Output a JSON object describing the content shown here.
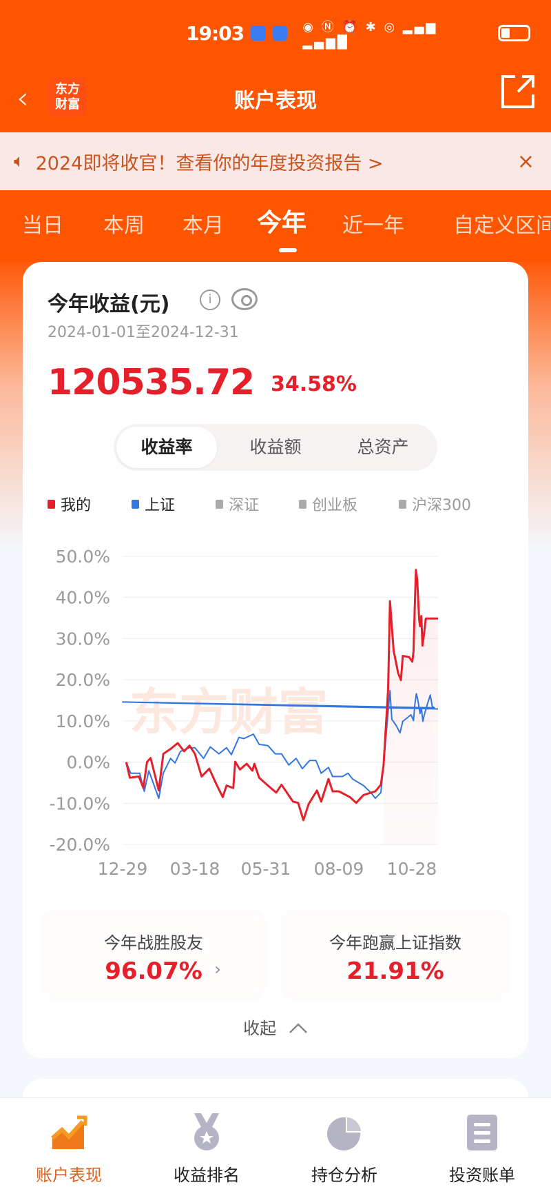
{
  "status_bar": {
    "time": "19:03",
    "icons": [
      "alarm-app-icon",
      "alarm-app-icon",
      "eye-icon",
      "nfc-icon",
      "alarm-icon",
      "bluetooth-icon",
      "hotspot-icon",
      "4g-signal-icon",
      "5g-signal-icon",
      "battery-icon"
    ]
  },
  "header": {
    "title": "账户表现",
    "logo_text": "东方财富",
    "back_icon": "chevron-left-icon",
    "share_icon": "share-icon"
  },
  "banner": {
    "text": "2024即将收官！查看你的年度投资报告 >",
    "icon": "speaker-icon",
    "close": "×"
  },
  "tabs": [
    {
      "label": "当日"
    },
    {
      "label": "本周"
    },
    {
      "label": "本月"
    },
    {
      "label": "今年",
      "active": true
    },
    {
      "label": "近一年"
    },
    {
      "label": "自定义区间"
    }
  ],
  "card": {
    "title": "今年收益(元)",
    "info_icon": "i",
    "date_range": "2024-01-01至2024-12-31",
    "profit": "120535.72",
    "profit_rate": "34.58%",
    "toggle": [
      {
        "label": "收益率",
        "active": true
      },
      {
        "label": "收益额"
      },
      {
        "label": "总资产"
      }
    ],
    "legend": [
      {
        "label": "我的",
        "color": "#e5202a",
        "active": true
      },
      {
        "label": "上证",
        "color": "#3277e0",
        "active": true
      },
      {
        "label": "深证",
        "color": "#aaaaaa"
      },
      {
        "label": "创业板",
        "color": "#aaaaaa"
      },
      {
        "label": "沪深300",
        "color": "#aaaaaa"
      }
    ],
    "watermark": "东方财富",
    "stats": [
      {
        "label": "今年战胜股友",
        "value": "96.07%",
        "chevron": "›"
      },
      {
        "label": "今年跑赢上证指数",
        "value": "21.91%"
      }
    ],
    "collapse_label": "收起",
    "collapse_icon": "^"
  },
  "chart_data": {
    "type": "line",
    "ylim": [
      -20,
      50
    ],
    "y_ticks": [
      "50.0%",
      "40.0%",
      "30.0%",
      "20.0%",
      "10.0%",
      "0.0%",
      "-10.0%",
      "-20.0%"
    ],
    "x_ticks": [
      "12-29",
      "03-18",
      "05-31",
      "08-09",
      "10-28"
    ],
    "grid": true,
    "legend_position": "top",
    "series": [
      {
        "name": "我的",
        "color": "#e5202a",
        "fill": true,
        "points": [
          [
            "01-02",
            0
          ],
          [
            "01-06",
            -3.8
          ],
          [
            "01-16",
            -3.5
          ],
          [
            "01-21",
            -6.3
          ],
          [
            "01-25",
            0
          ],
          [
            "01-29",
            1
          ],
          [
            "02-07",
            -6.9
          ],
          [
            "02-12",
            2
          ],
          [
            "02-20",
            3.2
          ],
          [
            "02-28",
            4.6
          ],
          [
            "03-06",
            2.6
          ],
          [
            "03-12",
            4
          ],
          [
            "03-18",
            2
          ],
          [
            "03-25",
            -3.5
          ],
          [
            "04-02",
            -1.6
          ],
          [
            "04-09",
            -5.2
          ],
          [
            "04-16",
            -8.5
          ],
          [
            "04-20",
            -5.7
          ],
          [
            "04-27",
            -6.3
          ],
          [
            "04-29",
            0.1
          ],
          [
            "05-04",
            -1.8
          ],
          [
            "05-11",
            -0.4
          ],
          [
            "05-17",
            -2.1
          ],
          [
            "05-19",
            -0.4
          ],
          [
            "05-24",
            -3.8
          ],
          [
            "06-02",
            -5.7
          ],
          [
            "06-10",
            -7.4
          ],
          [
            "06-15",
            -5.5
          ],
          [
            "06-26",
            -9.6
          ],
          [
            "07-01",
            -9.9
          ],
          [
            "07-06",
            -14.1
          ],
          [
            "07-11",
            -10.2
          ],
          [
            "07-19",
            -6.9
          ],
          [
            "07-23",
            -9.6
          ],
          [
            "07-30",
            -4.1
          ],
          [
            "08-03",
            -7.1
          ],
          [
            "08-09",
            -7.1
          ],
          [
            "08-21",
            -8.5
          ],
          [
            "08-28",
            -9.9
          ],
          [
            "09-05",
            -8
          ],
          [
            "09-18",
            -7.1
          ],
          [
            "09-24",
            -5.5
          ],
          [
            "09-27",
            -0.7
          ],
          [
            "10-02",
            17.7
          ],
          [
            "10-04",
            39.1
          ],
          [
            "10-08",
            27.1
          ],
          [
            "10-13",
            21.6
          ],
          [
            "10-16",
            19.9
          ],
          [
            "10-18",
            25.8
          ],
          [
            "10-25",
            25.5
          ],
          [
            "10-29",
            24.4
          ],
          [
            "11-01",
            26.9
          ],
          [
            "11-04",
            37.7
          ],
          [
            "11-07",
            46.7
          ],
          [
            "11-10",
            44.4
          ],
          [
            "11-15",
            34.4
          ],
          [
            "11-17",
            33
          ],
          [
            "11-20",
            35.5
          ],
          [
            "11-23",
            28.3
          ],
          [
            "11-26",
            30.5
          ],
          [
            "12-01",
            34.9
          ],
          [
            "12-31",
            34.9
          ]
        ]
      },
      {
        "name": "上证",
        "color": "#3277e0",
        "points": [
          [
            "01-02",
            0
          ],
          [
            "01-07",
            -2.7
          ],
          [
            "01-17",
            -2.7
          ],
          [
            "01-22",
            -7.1
          ],
          [
            "01-27",
            -2.1
          ],
          [
            "02-07",
            -8.8
          ],
          [
            "02-12",
            -2.7
          ],
          [
            "02-20",
            0.9
          ],
          [
            "02-25",
            -0.2
          ],
          [
            "03-02",
            2.6
          ],
          [
            "03-12",
            3.5
          ],
          [
            "03-18",
            3.5
          ],
          [
            "03-27",
            0.9
          ],
          [
            "04-03",
            3.7
          ],
          [
            "04-12",
            2
          ],
          [
            "04-20",
            3.5
          ],
          [
            "04-25",
            1.8
          ],
          [
            "05-03",
            6
          ],
          [
            "05-08",
            5.7
          ],
          [
            "05-18",
            6.8
          ],
          [
            "05-24",
            4.3
          ],
          [
            "06-02",
            4
          ],
          [
            "06-09",
            2
          ],
          [
            "06-15",
            2
          ],
          [
            "06-22",
            -0.7
          ],
          [
            "06-29",
            0.9
          ],
          [
            "07-05",
            -1.6
          ],
          [
            "07-12",
            0.4
          ],
          [
            "07-18",
            0.4
          ],
          [
            "07-23",
            -2.7
          ],
          [
            "07-30",
            -1.3
          ],
          [
            "08-03",
            -3.5
          ],
          [
            "08-13",
            -3.5
          ],
          [
            "08-19",
            -2.7
          ],
          [
            "08-24",
            -4.1
          ],
          [
            "09-05",
            -5.7
          ],
          [
            "09-13",
            -7.4
          ],
          [
            "09-18",
            -8.8
          ],
          [
            "09-24",
            -7.4
          ],
          [
            "09-27",
            -0.7
          ],
          [
            "10-04",
            17.4
          ],
          [
            "10-06",
            10.4
          ],
          [
            "10-11",
            8.8
          ],
          [
            "10-15",
            7.1
          ],
          [
            "10-18",
            9.9
          ],
          [
            "10-27",
            11.5
          ],
          [
            "11-01",
            10.1
          ],
          [
            "11-04",
            13.8
          ],
          [
            "11-08",
            16.6
          ],
          [
            "11-11",
            15.4
          ],
          [
            "11-17",
            11.8
          ],
          [
            "11-20",
            13.2
          ],
          [
            "11-24",
            9.9
          ],
          [
            "11-27",
            11.3
          ],
          [
            "12-04",
            13.8
          ],
          [
            "12-12",
            16.3
          ],
          [
            "12-17",
            13.5
          ],
          [
            "12-22",
            13.2
          ],
          [
            "12-29",
            14.6
          ],
          [
            "12-31",
            12.9
          ]
        ]
      }
    ]
  },
  "bottom_nav": [
    {
      "label": "账户表现",
      "icon": "trend-chart-icon",
      "active": true
    },
    {
      "label": "收益排名",
      "icon": "medal-icon"
    },
    {
      "label": "持仓分析",
      "icon": "pie-chart-icon"
    },
    {
      "label": "投资账单",
      "icon": "bill-icon"
    }
  ]
}
